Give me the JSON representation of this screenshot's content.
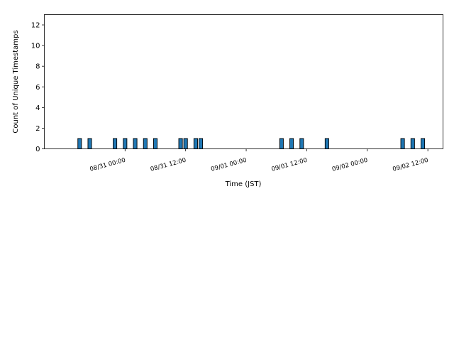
{
  "chart_data": {
    "type": "bar",
    "xlabel": "Time (JST)",
    "ylabel": "Count of Unique Timestamps",
    "ylim": [
      0,
      13
    ],
    "xlim": [
      "08/30 08:00",
      "09/02 15:00"
    ],
    "yticks": [
      0,
      2,
      4,
      6,
      8,
      10,
      12
    ],
    "xticks": [
      {
        "label": "08/31 00:00",
        "time": "08/31 00:00"
      },
      {
        "label": "08/31 12:00",
        "time": "08/31 12:00"
      },
      {
        "label": "09/01 00:00",
        "time": "09/01 00:00"
      },
      {
        "label": "09/01 12:00",
        "time": "09/01 12:00"
      },
      {
        "label": "09/02 00:00",
        "time": "09/02 00:00"
      },
      {
        "label": "09/02 12:00",
        "time": "09/02 12:00"
      }
    ],
    "bar_width_hours": 1,
    "bar_color": "#1f77b4",
    "edge_color": "#000000",
    "bars": [
      {
        "time": "08/30 15:00",
        "value": 1
      },
      {
        "time": "08/30 17:00",
        "value": 1
      },
      {
        "time": "08/30 22:00",
        "value": 1
      },
      {
        "time": "08/31 00:00",
        "value": 1
      },
      {
        "time": "08/31 02:00",
        "value": 1
      },
      {
        "time": "08/31 04:00",
        "value": 1
      },
      {
        "time": "08/31 06:00",
        "value": 1
      },
      {
        "time": "08/31 11:00",
        "value": 1
      },
      {
        "time": "08/31 12:00",
        "value": 1
      },
      {
        "time": "08/31 14:00",
        "value": 1
      },
      {
        "time": "08/31 15:00",
        "value": 1
      },
      {
        "time": "09/01 07:00",
        "value": 1
      },
      {
        "time": "09/01 09:00",
        "value": 1
      },
      {
        "time": "09/01 11:00",
        "value": 1
      },
      {
        "time": "09/01 16:00",
        "value": 1
      },
      {
        "time": "09/02 07:00",
        "value": 1
      },
      {
        "time": "09/02 09:00",
        "value": 1
      },
      {
        "time": "09/02 11:00",
        "value": 1
      }
    ]
  }
}
